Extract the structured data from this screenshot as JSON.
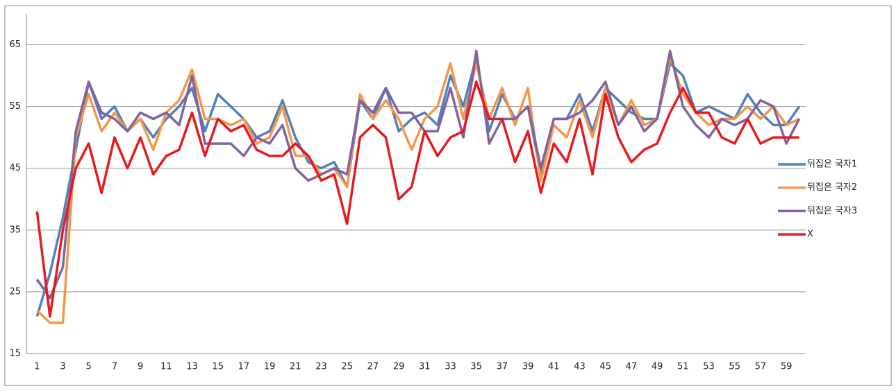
{
  "chart_data": {
    "type": "line",
    "categories": [
      "1",
      null,
      "3",
      null,
      "5",
      null,
      "7",
      null,
      "9",
      null,
      "11",
      null,
      "13",
      null,
      "15",
      null,
      "17",
      null,
      "19",
      null,
      "21",
      null,
      "23",
      null,
      "25",
      null,
      "27",
      null,
      "29",
      null,
      "31",
      null,
      "33",
      null,
      "35",
      null,
      "37",
      null,
      "39",
      null,
      "41",
      null,
      "43",
      null,
      "45",
      null,
      "47",
      null,
      "49",
      null,
      "51",
      null,
      "53",
      null,
      "55",
      null,
      "57",
      null,
      "59",
      null
    ],
    "ylim": [
      15,
      70
    ],
    "yticks": [
      15,
      25,
      35,
      45,
      55,
      65
    ],
    "grid": true,
    "legend": "right",
    "series": [
      {
        "name": "뒤집은 국자1",
        "color": "#4f81bd",
        "values": [
          21,
          28,
          37,
          48,
          59,
          53,
          55,
          51,
          53,
          50,
          53,
          55,
          58,
          51,
          57,
          55,
          53,
          50,
          51,
          56,
          50,
          46,
          45,
          46,
          42,
          56,
          53,
          58,
          51,
          53,
          54,
          52,
          60,
          55,
          63,
          51,
          57,
          53,
          55,
          44,
          53,
          53,
          57,
          51,
          58,
          56,
          54,
          53,
          53,
          62,
          60,
          54,
          55,
          54,
          53,
          57,
          54,
          52,
          52,
          55
        ]
      },
      {
        "name": "뒤집은 국자2",
        "color": "#f79646",
        "values": [
          22,
          20,
          20,
          50,
          57,
          51,
          54,
          51,
          53,
          48,
          54,
          56,
          61,
          53,
          53,
          52,
          53,
          49,
          50,
          55,
          47,
          47,
          44,
          45,
          42,
          57,
          53,
          56,
          53,
          48,
          53,
          55,
          62,
          53,
          62,
          53,
          58,
          52,
          58,
          43,
          52,
          50,
          56,
          50,
          58,
          52,
          56,
          52,
          53,
          63,
          57,
          54,
          52,
          53,
          53,
          55,
          53,
          55,
          52,
          53
        ]
      },
      {
        "name": "뒤집은 국자3",
        "color": "#8064a2",
        "values": [
          27,
          24,
          29,
          51,
          59,
          54,
          53,
          51,
          54,
          53,
          54,
          52,
          60,
          49,
          49,
          49,
          47,
          50,
          49,
          52,
          45,
          43,
          44,
          45,
          44,
          56,
          54,
          58,
          54,
          54,
          51,
          51,
          58,
          50,
          64,
          49,
          53,
          53,
          55,
          45,
          53,
          53,
          54,
          56,
          59,
          52,
          55,
          51,
          53,
          64,
          55,
          52,
          50,
          53,
          52,
          53,
          56,
          55,
          49,
          53
        ]
      },
      {
        "name": "X",
        "color": "#e8191d",
        "values": [
          38,
          21,
          35,
          45,
          49,
          41,
          50,
          45,
          50,
          44,
          47,
          48,
          54,
          47,
          53,
          51,
          52,
          48,
          47,
          47,
          49,
          47,
          43,
          44,
          36,
          50,
          52,
          50,
          40,
          42,
          51,
          47,
          50,
          51,
          59,
          53,
          53,
          46,
          51,
          41,
          49,
          46,
          53,
          44,
          57,
          50,
          46,
          48,
          49,
          54,
          58,
          54,
          54,
          50,
          49,
          53,
          49,
          50,
          50,
          50
        ]
      }
    ]
  }
}
